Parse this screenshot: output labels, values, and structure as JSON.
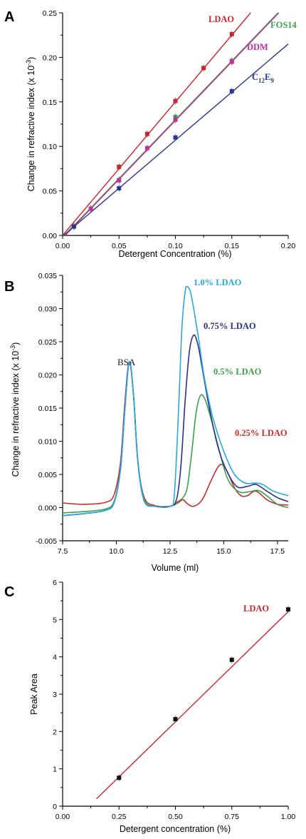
{
  "chart_data": [
    {
      "panel_label": "A",
      "type": "scatter",
      "xlabel": "Detergent Concentration (%)",
      "ylabel_main": "Change in refractive index (x 10",
      "ylabel_sup": "-3",
      "ylabel_end": ")",
      "xlim": [
        0.0,
        0.2
      ],
      "ylim": [
        0.0,
        0.25
      ],
      "xticks": [
        "0.00",
        "0.05",
        "0.10",
        "0.15",
        "0.20"
      ],
      "yticks": [
        "0.00",
        "0.05",
        "0.10",
        "0.15",
        "0.20",
        "0.25"
      ],
      "xtick_values": [
        0.0,
        0.05,
        0.1,
        0.15,
        0.2
      ],
      "ytick_values": [
        0.0,
        0.05,
        0.1,
        0.15,
        0.2,
        0.25
      ],
      "series": [
        {
          "name": "LDAO",
          "color": "#c8262d",
          "x": [
            0.01,
            0.05,
            0.075,
            0.1,
            0.125,
            0.15
          ],
          "y": [
            0.01,
            0.077,
            0.114,
            0.151,
            0.188,
            0.226
          ],
          "fit": {
            "slope": 1.5,
            "intercept": 0.0
          }
        },
        {
          "name": "FOS14",
          "color": "#3aa34a",
          "x": [
            0.01,
            0.025,
            0.05,
            0.1,
            0.15
          ],
          "y": [
            0.01,
            0.03,
            0.062,
            0.133,
            0.196
          ],
          "fit": {
            "slope": 1.32,
            "intercept": -0.002
          }
        },
        {
          "name": "DDM",
          "color": "#c42f9a",
          "x": [
            0.01,
            0.025,
            0.05,
            0.075,
            0.1,
            0.15
          ],
          "y": [
            0.01,
            0.03,
            0.062,
            0.098,
            0.13,
            0.195
          ],
          "fit": {
            "slope": 1.32,
            "intercept": -0.003
          }
        },
        {
          "name": "C",
          "name_sub1": "12",
          "name_mid": "E",
          "name_sub2": "9",
          "color": "#2b3590",
          "x": [
            0.01,
            0.05,
            0.1,
            0.15
          ],
          "y": [
            0.01,
            0.053,
            0.11,
            0.162
          ],
          "fit": {
            "slope": 1.08,
            "intercept": -0.001
          }
        }
      ]
    },
    {
      "panel_label": "B",
      "type": "line",
      "xlabel": "Volume (ml)",
      "ylabel_main": "Change in refractive index (x 10",
      "ylabel_sup": "-3",
      "ylabel_end": ")",
      "xlim": [
        7.5,
        18.0
      ],
      "ylim": [
        -0.005,
        0.035
      ],
      "xticks": [
        "7.5",
        "10.0",
        "12.5",
        "15.0",
        "17.5"
      ],
      "yticks": [
        "-0.005",
        "0.000",
        "0.005",
        "0.010",
        "0.015",
        "0.020",
        "0.025",
        "0.030",
        "0.035"
      ],
      "xtick_values": [
        7.5,
        10.0,
        12.5,
        15.0,
        17.5
      ],
      "ytick_values": [
        -0.005,
        0.0,
        0.005,
        0.01,
        0.015,
        0.02,
        0.025,
        0.03,
        0.035
      ],
      "annotation": "BSA",
      "series": [
        {
          "name": "0.25% LDAO",
          "color": "#cc2a2a",
          "x": [
            7.5,
            8.5,
            9.5,
            9.9,
            10.2,
            10.4,
            10.6,
            10.8,
            11.0,
            11.3,
            11.8,
            12.5,
            12.9,
            13.1,
            13.3,
            13.6,
            14.0,
            14.4,
            14.8,
            15.1,
            15.5,
            15.8,
            16.1,
            16.5,
            17.0,
            17.5,
            18.0
          ],
          "y": [
            0.0007,
            0.0005,
            0.0008,
            0.002,
            0.007,
            0.016,
            0.022,
            0.017,
            0.007,
            0.0015,
            0.0003,
            0.0002,
            0.0008,
            0.0012,
            0.0006,
            0.0002,
            0.0012,
            0.004,
            0.0064,
            0.0058,
            0.003,
            0.0018,
            0.0018,
            0.0025,
            0.0012,
            0.0005,
            0.0004
          ]
        },
        {
          "name": "0.5% LDAO",
          "color": "#3aa34a",
          "x": [
            7.5,
            8.5,
            9.5,
            9.9,
            10.2,
            10.4,
            10.6,
            10.8,
            11.0,
            11.3,
            11.8,
            12.5,
            12.9,
            13.1,
            13.3,
            13.5,
            13.7,
            13.9,
            14.1,
            14.4,
            14.8,
            15.2,
            15.7,
            16.2,
            16.6,
            17.0,
            17.5,
            18.0
          ],
          "y": [
            -0.0008,
            -0.0006,
            -0.0002,
            0.001,
            0.006,
            0.015,
            0.022,
            0.017,
            0.007,
            0.0012,
            0.0002,
            0.0002,
            0.001,
            0.0015,
            0.003,
            0.008,
            0.014,
            0.0168,
            0.0165,
            0.0135,
            0.0085,
            0.0042,
            0.0024,
            0.0024,
            0.0026,
            0.0018,
            0.0005,
            0.0
          ]
        },
        {
          "name": "0.75% LDAO",
          "color": "#2b2f86",
          "x": [
            7.5,
            8.5,
            9.5,
            9.9,
            10.2,
            10.4,
            10.6,
            10.8,
            11.0,
            11.3,
            11.8,
            12.5,
            12.8,
            13.0,
            13.2,
            13.4,
            13.6,
            13.8,
            14.0,
            14.3,
            14.7,
            15.1,
            15.6,
            16.1,
            16.5,
            17.0,
            17.5,
            18.0
          ],
          "y": [
            -0.0012,
            -0.0009,
            -0.0004,
            0.0008,
            0.006,
            0.015,
            0.022,
            0.017,
            0.007,
            0.001,
            0.0002,
            0.0002,
            0.0012,
            0.006,
            0.016,
            0.0235,
            0.026,
            0.0245,
            0.021,
            0.0155,
            0.0095,
            0.0058,
            0.0032,
            0.0032,
            0.0035,
            0.0025,
            0.0015,
            0.0009
          ]
        },
        {
          "name": "1.0% LDAO",
          "color": "#28a8e0",
          "x": [
            7.5,
            8.5,
            9.5,
            9.9,
            10.2,
            10.4,
            10.6,
            10.8,
            11.0,
            11.3,
            11.8,
            12.5,
            12.7,
            12.9,
            13.05,
            13.2,
            13.3,
            13.45,
            13.6,
            13.85,
            14.1,
            14.5,
            15.0,
            15.5,
            16.0,
            16.4,
            16.8,
            17.3,
            18.0
          ],
          "y": [
            -0.0012,
            -0.0009,
            -0.0004,
            0.0008,
            0.006,
            0.015,
            0.022,
            0.017,
            0.007,
            0.001,
            0.0002,
            0.0002,
            0.002,
            0.015,
            0.027,
            0.0325,
            0.0333,
            0.0325,
            0.03,
            0.025,
            0.0195,
            0.0135,
            0.0085,
            0.005,
            0.0037,
            0.0037,
            0.0035,
            0.0025,
            0.0018
          ]
        }
      ]
    },
    {
      "panel_label": "C",
      "type": "scatter",
      "xlabel": "Detergent concentration (%)",
      "ylabel": "Peak Area",
      "xlim": [
        0.0,
        1.0
      ],
      "ylim": [
        0,
        6
      ],
      "xticks": [
        "0.00",
        "0.25",
        "0.50",
        "0.75",
        "1.00"
      ],
      "yticks": [
        "0",
        "1",
        "2",
        "3",
        "4",
        "5",
        "6"
      ],
      "xtick_values": [
        0.0,
        0.25,
        0.5,
        0.75,
        1.0
      ],
      "ytick_values": [
        0,
        1,
        2,
        3,
        4,
        5,
        6
      ],
      "series": [
        {
          "name": "LDAO",
          "color": "#c8262d",
          "x": [
            0.25,
            0.5,
            0.75,
            1.0
          ],
          "y": [
            0.76,
            2.33,
            3.92,
            5.27
          ],
          "fit": {
            "slope": 5.9,
            "intercept": -0.69,
            "x_range": [
              0.15,
              1.0
            ]
          }
        }
      ]
    }
  ]
}
